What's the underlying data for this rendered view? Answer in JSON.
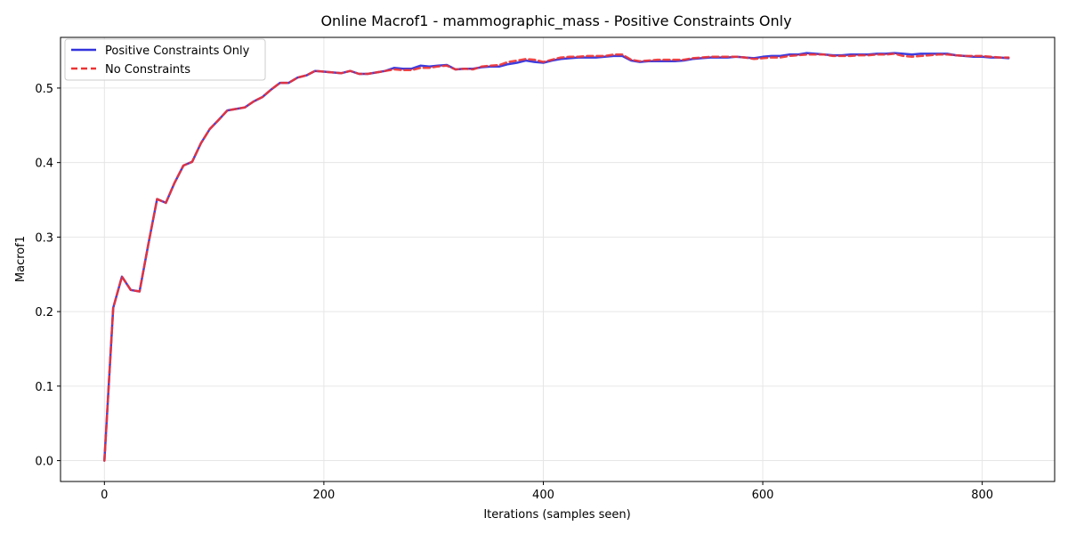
{
  "chart_data": {
    "type": "line",
    "title": "Online Macrof1 - mammographic_mass - Positive Constraints Only",
    "xlabel": "Iterations (samples seen)",
    "ylabel": "Macrof1",
    "xlim": [
      -40,
      866
    ],
    "ylim": [
      -0.028,
      0.568
    ],
    "xticks": [
      0,
      200,
      400,
      600,
      800
    ],
    "yticks": [
      0.0,
      0.1,
      0.2,
      0.3,
      0.4,
      0.5
    ],
    "grid": true,
    "legend_position": "top-left",
    "series": [
      {
        "name": "Positive Constraints Only",
        "color": "#3333dd",
        "style": "solid",
        "x": [
          0,
          8,
          16,
          24,
          32,
          40,
          48,
          56,
          64,
          72,
          80,
          88,
          96,
          104,
          112,
          120,
          128,
          136,
          144,
          152,
          160,
          168,
          176,
          184,
          192,
          200,
          208,
          216,
          224,
          232,
          240,
          248,
          256,
          264,
          272,
          280,
          288,
          296,
          304,
          312,
          320,
          328,
          336,
          344,
          352,
          360,
          368,
          376,
          384,
          392,
          400,
          408,
          416,
          424,
          432,
          440,
          448,
          456,
          464,
          472,
          480,
          488,
          496,
          504,
          512,
          520,
          528,
          536,
          544,
          552,
          560,
          568,
          576,
          584,
          592,
          600,
          608,
          616,
          624,
          632,
          640,
          648,
          656,
          664,
          672,
          680,
          688,
          696,
          704,
          712,
          720,
          728,
          736,
          744,
          752,
          760,
          768,
          776,
          784,
          792,
          800,
          808,
          816,
          824
        ],
        "y": [
          0.0,
          0.205,
          0.247,
          0.229,
          0.227,
          0.29,
          0.351,
          0.346,
          0.373,
          0.396,
          0.401,
          0.426,
          0.445,
          0.457,
          0.47,
          0.472,
          0.474,
          0.482,
          0.488,
          0.498,
          0.507,
          0.507,
          0.514,
          0.517,
          0.523,
          0.522,
          0.521,
          0.52,
          0.523,
          0.519,
          0.519,
          0.521,
          0.523,
          0.527,
          0.526,
          0.526,
          0.53,
          0.529,
          0.53,
          0.531,
          0.525,
          0.526,
          0.526,
          0.528,
          0.529,
          0.529,
          0.532,
          0.534,
          0.537,
          0.535,
          0.534,
          0.537,
          0.539,
          0.54,
          0.541,
          0.541,
          0.541,
          0.542,
          0.543,
          0.543,
          0.537,
          0.535,
          0.536,
          0.536,
          0.536,
          0.536,
          0.537,
          0.539,
          0.54,
          0.541,
          0.541,
          0.541,
          0.542,
          0.541,
          0.54,
          0.542,
          0.543,
          0.543,
          0.545,
          0.545,
          0.547,
          0.546,
          0.545,
          0.544,
          0.544,
          0.545,
          0.545,
          0.545,
          0.546,
          0.546,
          0.547,
          0.546,
          0.545,
          0.546,
          0.546,
          0.546,
          0.546,
          0.544,
          0.543,
          0.542,
          0.542,
          0.541,
          0.541,
          0.54
        ]
      },
      {
        "name": "No Constraints",
        "color": "#ee3333",
        "style": "dashed",
        "x": [
          0,
          8,
          16,
          24,
          32,
          40,
          48,
          56,
          64,
          72,
          80,
          88,
          96,
          104,
          112,
          120,
          128,
          136,
          144,
          152,
          160,
          168,
          176,
          184,
          192,
          200,
          208,
          216,
          224,
          232,
          240,
          248,
          256,
          264,
          272,
          280,
          288,
          296,
          304,
          312,
          320,
          328,
          336,
          344,
          352,
          360,
          368,
          376,
          384,
          392,
          400,
          408,
          416,
          424,
          432,
          440,
          448,
          456,
          464,
          472,
          480,
          488,
          496,
          504,
          512,
          520,
          528,
          536,
          544,
          552,
          560,
          568,
          576,
          584,
          592,
          600,
          608,
          616,
          624,
          632,
          640,
          648,
          656,
          664,
          672,
          680,
          688,
          696,
          704,
          712,
          720,
          728,
          736,
          744,
          752,
          760,
          768,
          776,
          784,
          792,
          800,
          808,
          816,
          824
        ],
        "y": [
          0.0,
          0.205,
          0.247,
          0.229,
          0.227,
          0.29,
          0.351,
          0.346,
          0.373,
          0.396,
          0.401,
          0.426,
          0.445,
          0.457,
          0.47,
          0.472,
          0.474,
          0.482,
          0.488,
          0.498,
          0.507,
          0.507,
          0.514,
          0.517,
          0.523,
          0.522,
          0.521,
          0.52,
          0.523,
          0.519,
          0.519,
          0.521,
          0.523,
          0.525,
          0.524,
          0.524,
          0.527,
          0.527,
          0.529,
          0.53,
          0.525,
          0.526,
          0.525,
          0.529,
          0.53,
          0.531,
          0.535,
          0.537,
          0.539,
          0.538,
          0.535,
          0.538,
          0.541,
          0.542,
          0.542,
          0.543,
          0.543,
          0.543,
          0.545,
          0.545,
          0.538,
          0.536,
          0.537,
          0.538,
          0.538,
          0.538,
          0.538,
          0.54,
          0.541,
          0.542,
          0.542,
          0.542,
          0.542,
          0.541,
          0.539,
          0.54,
          0.541,
          0.541,
          0.543,
          0.544,
          0.545,
          0.545,
          0.545,
          0.543,
          0.543,
          0.543,
          0.544,
          0.544,
          0.545,
          0.545,
          0.546,
          0.543,
          0.542,
          0.543,
          0.544,
          0.545,
          0.545,
          0.544,
          0.543,
          0.543,
          0.543,
          0.542,
          0.541,
          0.541
        ]
      }
    ]
  }
}
